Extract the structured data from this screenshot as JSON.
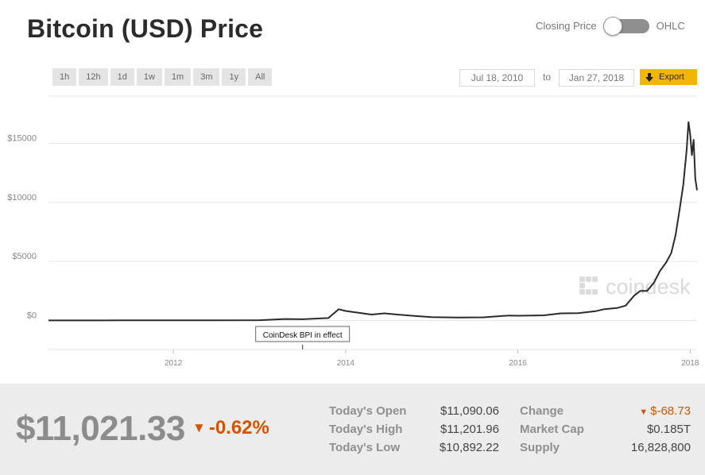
{
  "header": {
    "title": "Bitcoin (USD) Price"
  },
  "toggle": {
    "left_label": "Closing Price",
    "right_label": "OHLC"
  },
  "ranges": [
    "1h",
    "12h",
    "1d",
    "1w",
    "1m",
    "3m",
    "1y",
    "All"
  ],
  "dates": {
    "from": "Jul 18, 2010",
    "to_label": "to",
    "to": "Jan 27, 2018"
  },
  "export": {
    "label": "Export"
  },
  "annotation": {
    "text": "CoinDesk BPI in effect",
    "date": 2013.5
  },
  "watermark": {
    "text": "coindesk"
  },
  "colors": {
    "line": "#2b2b2b",
    "accent": "#f2b600",
    "negative": "#d35400",
    "stats_bg": "#ececec"
  },
  "chart_data": {
    "type": "line",
    "title": "",
    "xlabel": "",
    "ylabel": "",
    "xlim": [
      2010.55,
      2018.08
    ],
    "ylim": [
      -3000,
      19000
    ],
    "grid": true,
    "x_ticks": [
      2012,
      2014,
      2016,
      2018
    ],
    "x_tick_labels": [
      "2012",
      "2014",
      "2016",
      "2018"
    ],
    "y_ticks": [
      0,
      5000,
      10000,
      15000
    ],
    "y_tick_labels": [
      "$0",
      "$5000",
      "$10000",
      "$15000"
    ],
    "series": [
      {
        "x": [
          2010.55,
          2011.0,
          2011.45,
          2011.6,
          2012.0,
          2012.5,
          2013.0,
          2013.3,
          2013.5,
          2013.8,
          2013.92,
          2014.0,
          2014.15,
          2014.3,
          2014.45,
          2014.6,
          2014.8,
          2015.0,
          2015.3,
          2015.6,
          2015.9,
          2016.0,
          2016.3,
          2016.5,
          2016.7,
          2016.9,
          2017.0,
          2017.15,
          2017.25,
          2017.35,
          2017.42,
          2017.5,
          2017.58,
          2017.65,
          2017.72,
          2017.78,
          2017.83,
          2017.88,
          2017.92,
          2017.96,
          2017.98,
          2018.0,
          2018.02,
          2018.04,
          2018.06,
          2018.08
        ],
        "y": [
          0,
          0,
          15,
          10,
          5,
          8,
          20,
          120,
          100,
          200,
          950,
          800,
          650,
          500,
          600,
          500,
          380,
          280,
          240,
          260,
          420,
          400,
          430,
          600,
          620,
          780,
          950,
          1050,
          1250,
          2100,
          2500,
          2500,
          3200,
          4200,
          4900,
          5700,
          7200,
          9500,
          11500,
          14500,
          16800,
          15800,
          14000,
          15300,
          12000,
          11021
        ]
      }
    ]
  },
  "stats": {
    "price": "$11,021.33",
    "change_pct": "-0.62%",
    "rows": [
      {
        "label": "Today's Open",
        "value": "$11,090.06",
        "label2": "Change",
        "value2": "$-68.73"
      },
      {
        "label": "Today's High",
        "value": "$11,201.96",
        "label2": "Market Cap",
        "value2": "$0.185T"
      },
      {
        "label": "Today's Low",
        "value": "$10,892.22",
        "label2": "Supply",
        "value2": "16,828,800"
      }
    ]
  }
}
